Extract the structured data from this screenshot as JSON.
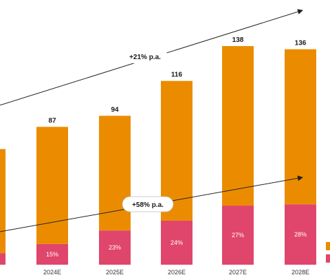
{
  "chart_data": {
    "type": "bar",
    "stacked": true,
    "categories": [
      "",
      "2024E",
      "2025E",
      "2026E",
      "2027E",
      "2028E"
    ],
    "totals": [
      73,
      87,
      94,
      116,
      138,
      136
    ],
    "total_labels": [
      "",
      "87",
      "94",
      "116",
      "138",
      "136"
    ],
    "share_percent": [
      10,
      15,
      23,
      24,
      27,
      28
    ],
    "share_labels": [
      "",
      "15%",
      "23%",
      "24%",
      "27%",
      "28%"
    ],
    "series": [
      {
        "values": [
          7.3,
          13.1,
          21.6,
          27.8,
          37.3,
          38.1
        ]
      },
      {
        "values": [
          65.7,
          73.9,
          72.4,
          88.2,
          100.7,
          97.9
        ]
      }
    ],
    "annotations": [
      {
        "text": "+21% p.a."
      },
      {
        "text": "+58% p.a."
      }
    ],
    "colors": {
      "top_segment": "#EB8C00",
      "bottom_segment": "#E0456B",
      "arrow": "#222222"
    },
    "ylim": [
      0,
      150
    ],
    "grid": false,
    "legend": "bottom-right"
  }
}
